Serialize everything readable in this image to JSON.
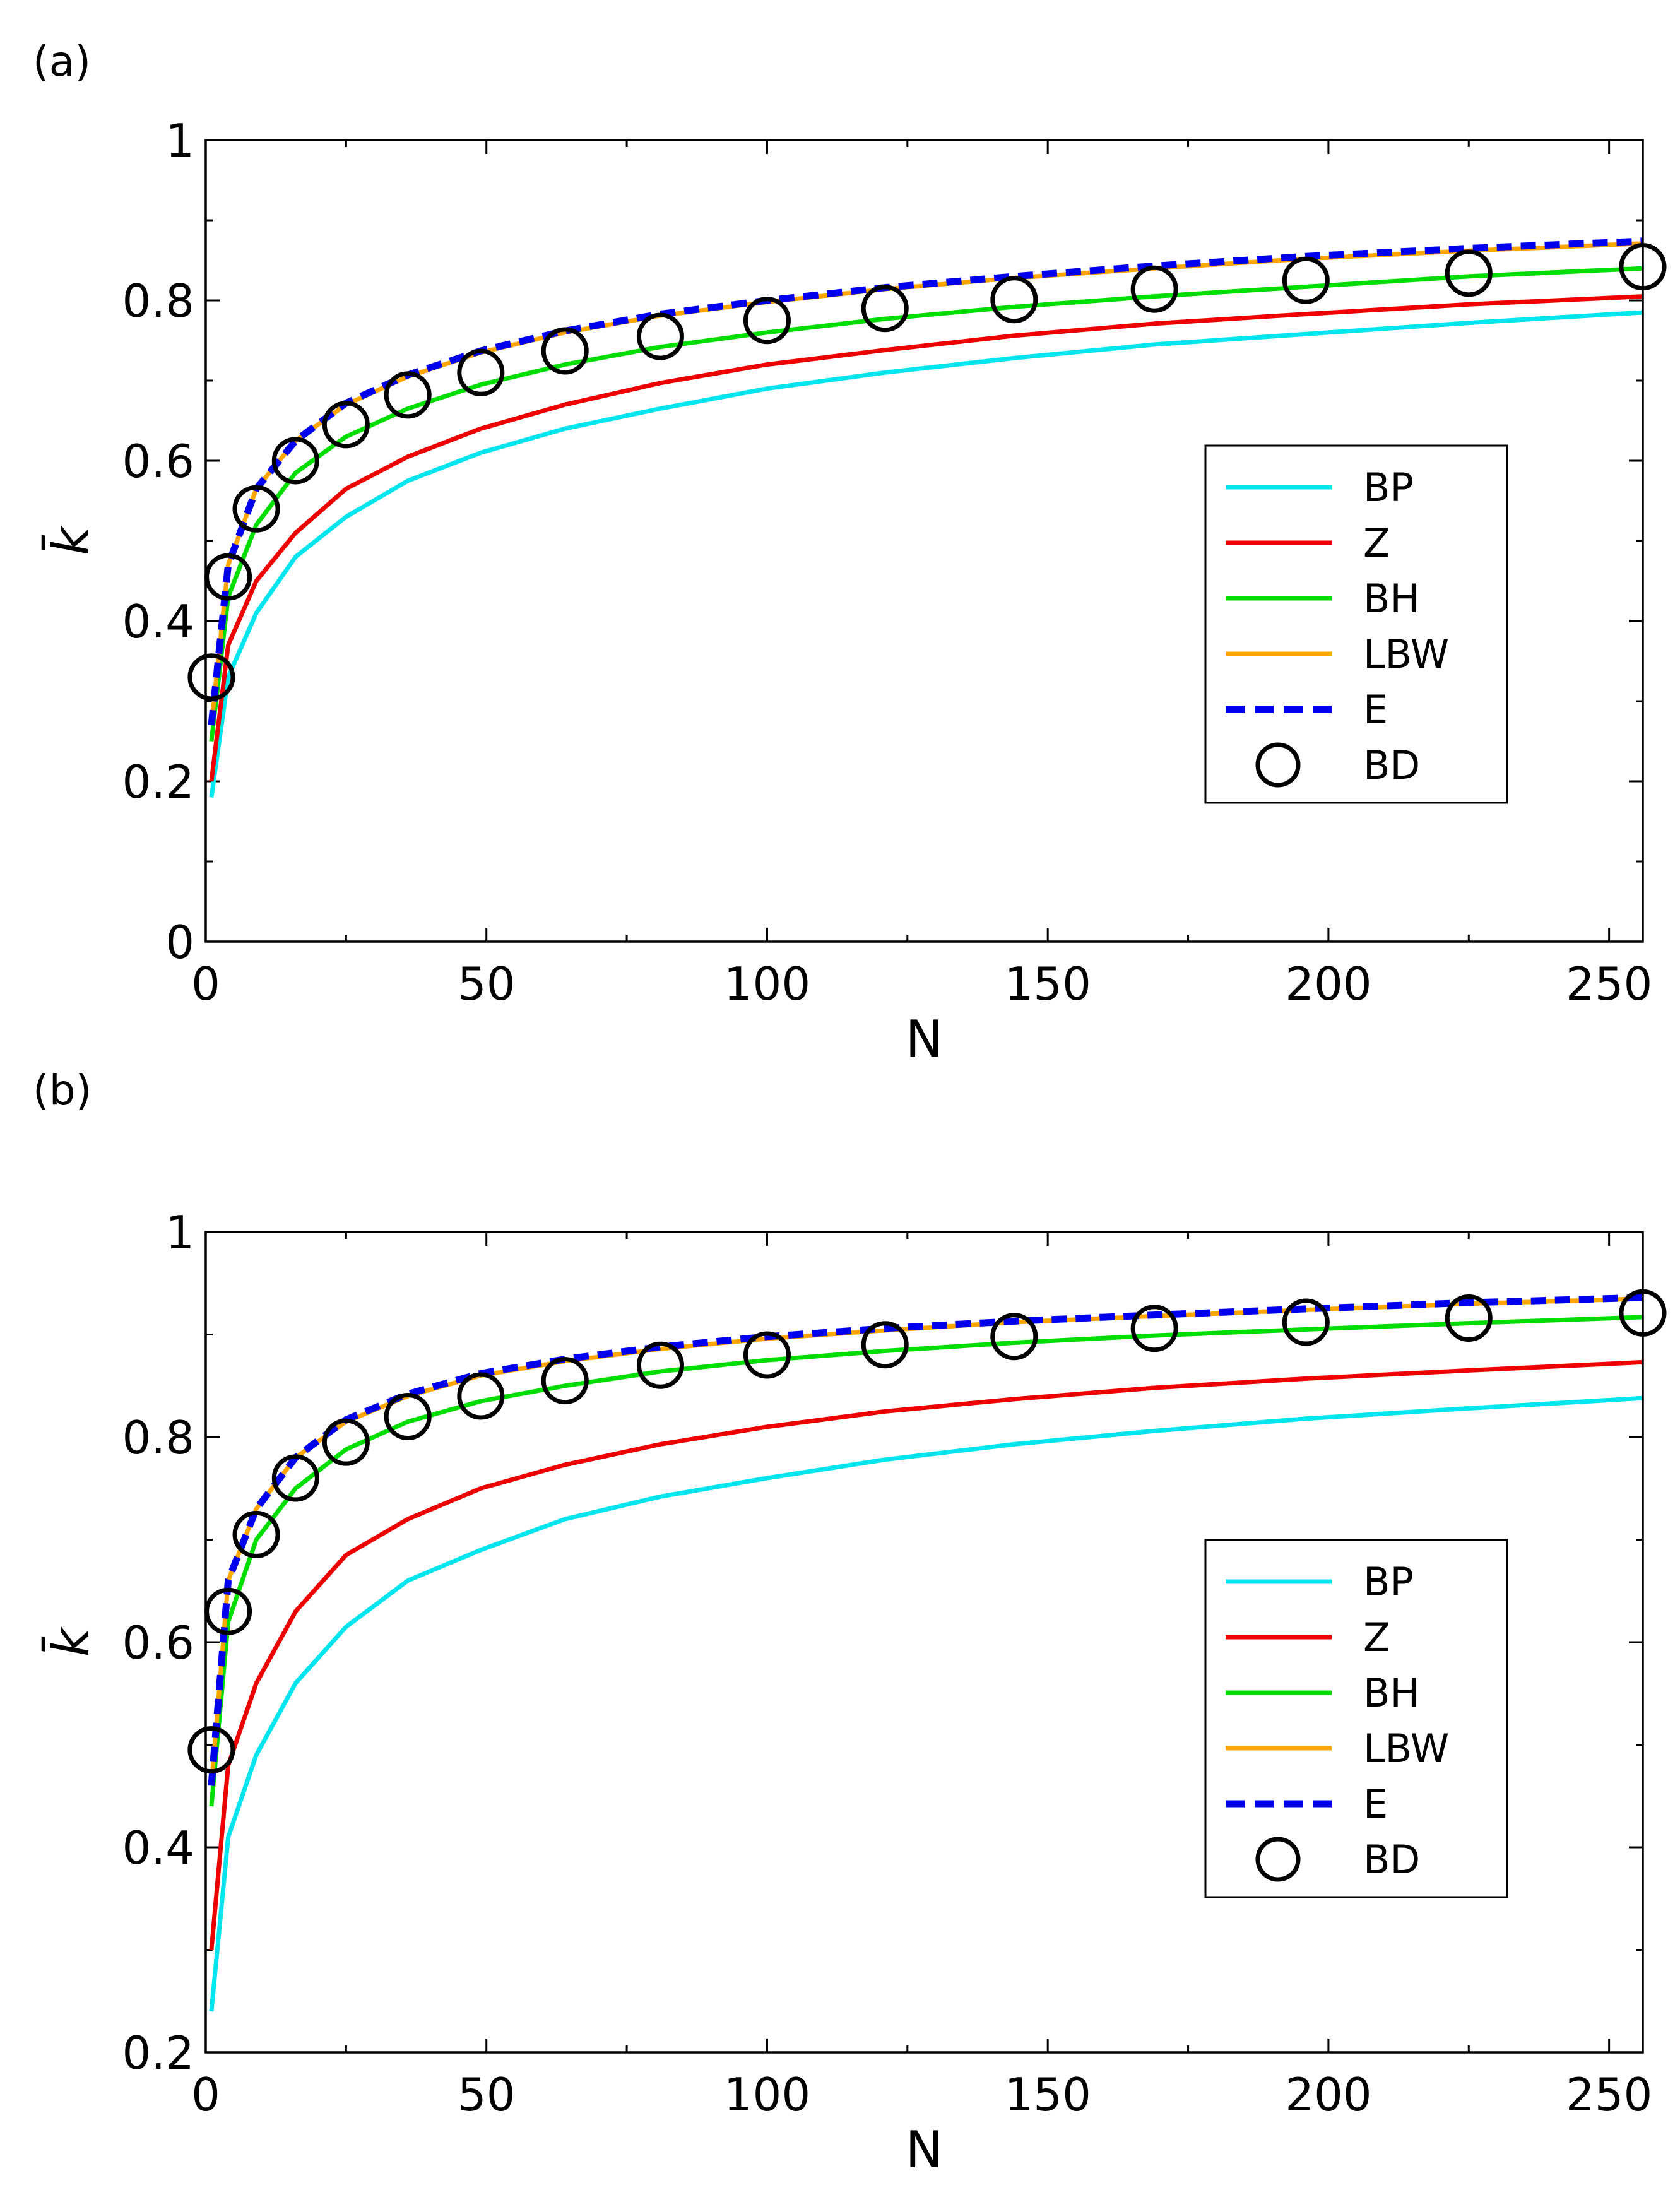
{
  "chart_data": [
    {
      "type": "line",
      "panel_label": "(a)",
      "xlabel": "N",
      "ylabel": "k̄",
      "xlim": [
        0,
        256
      ],
      "ylim": [
        0,
        1
      ],
      "xticks": [
        0,
        50,
        100,
        150,
        200,
        250
      ],
      "yticks": [
        0,
        0.2,
        0.4,
        0.6,
        0.8,
        1
      ],
      "xtick_labels": [
        "0",
        "50",
        "100",
        "150",
        "200",
        "250"
      ],
      "ytick_labels": [
        "0",
        "0.2",
        "0.4",
        "0.6",
        "0.8",
        "1"
      ],
      "x": [
        1,
        4,
        9,
        16,
        25,
        36,
        49,
        64,
        81,
        100,
        121,
        144,
        169,
        196,
        225,
        256
      ],
      "series": [
        {
          "name": "BP",
          "color": "#00e5ee",
          "style": "solid",
          "values": [
            0.18,
            0.33,
            0.41,
            0.48,
            0.53,
            0.575,
            0.61,
            0.64,
            0.665,
            0.69,
            0.71,
            0.728,
            0.745,
            0.758,
            0.772,
            0.785
          ]
        },
        {
          "name": "Z",
          "color": "#ee0000",
          "style": "solid",
          "values": [
            0.2,
            0.37,
            0.45,
            0.51,
            0.565,
            0.605,
            0.64,
            0.67,
            0.697,
            0.72,
            0.738,
            0.756,
            0.771,
            0.783,
            0.795,
            0.805
          ]
        },
        {
          "name": "BH",
          "color": "#00dd00",
          "style": "solid",
          "values": [
            0.25,
            0.43,
            0.52,
            0.585,
            0.63,
            0.665,
            0.695,
            0.72,
            0.742,
            0.76,
            0.777,
            0.792,
            0.805,
            0.817,
            0.83,
            0.84
          ]
        },
        {
          "name": "LBW",
          "color": "#ffa500",
          "style": "solid",
          "values": [
            0.27,
            0.47,
            0.565,
            0.625,
            0.67,
            0.705,
            0.735,
            0.76,
            0.781,
            0.798,
            0.814,
            0.828,
            0.84,
            0.852,
            0.862,
            0.871
          ]
        },
        {
          "name": "E",
          "color": "#0000ee",
          "style": "dashed",
          "values": [
            0.27,
            0.47,
            0.565,
            0.625,
            0.672,
            0.707,
            0.737,
            0.762,
            0.783,
            0.8,
            0.816,
            0.83,
            0.843,
            0.855,
            0.865,
            0.874
          ]
        },
        {
          "name": "BD",
          "color": "#000000",
          "style": "marker",
          "values": [
            0.33,
            0.455,
            0.54,
            0.6,
            0.645,
            0.682,
            0.71,
            0.737,
            0.755,
            0.775,
            0.79,
            0.801,
            0.814,
            0.825,
            0.834,
            0.842
          ]
        }
      ],
      "legend": [
        "BP",
        "Z",
        "BH",
        "LBW",
        "E",
        "BD"
      ],
      "legend_position": "right"
    },
    {
      "type": "line",
      "panel_label": "(b)",
      "xlabel": "N",
      "ylabel": "k̄",
      "xlim": [
        0,
        256
      ],
      "ylim": [
        0.2,
        1
      ],
      "xticks": [
        0,
        50,
        100,
        150,
        200,
        250
      ],
      "yticks": [
        0.2,
        0.4,
        0.6,
        0.8,
        1
      ],
      "xtick_labels": [
        "0",
        "50",
        "100",
        "150",
        "200",
        "250"
      ],
      "ytick_labels": [
        "0.2",
        "0.4",
        "0.6",
        "0.8",
        "1"
      ],
      "x": [
        1,
        4,
        9,
        16,
        25,
        36,
        49,
        64,
        81,
        100,
        121,
        144,
        169,
        196,
        225,
        256
      ],
      "series": [
        {
          "name": "BP",
          "color": "#00e5ee",
          "style": "solid",
          "values": [
            0.24,
            0.41,
            0.49,
            0.56,
            0.615,
            0.66,
            0.69,
            0.72,
            0.742,
            0.76,
            0.778,
            0.793,
            0.806,
            0.818,
            0.828,
            0.838
          ]
        },
        {
          "name": "Z",
          "color": "#ee0000",
          "style": "solid",
          "values": [
            0.3,
            0.48,
            0.56,
            0.63,
            0.685,
            0.72,
            0.75,
            0.773,
            0.793,
            0.81,
            0.825,
            0.837,
            0.848,
            0.857,
            0.865,
            0.873
          ]
        },
        {
          "name": "BH",
          "color": "#00dd00",
          "style": "solid",
          "values": [
            0.44,
            0.62,
            0.7,
            0.75,
            0.788,
            0.815,
            0.835,
            0.85,
            0.864,
            0.875,
            0.884,
            0.892,
            0.899,
            0.905,
            0.911,
            0.917
          ]
        },
        {
          "name": "LBW",
          "color": "#ffa500",
          "style": "solid",
          "values": [
            0.46,
            0.66,
            0.73,
            0.78,
            0.815,
            0.84,
            0.86,
            0.874,
            0.886,
            0.896,
            0.904,
            0.912,
            0.918,
            0.924,
            0.93,
            0.935
          ]
        },
        {
          "name": "E",
          "color": "#0000ee",
          "style": "dashed",
          "values": [
            0.46,
            0.66,
            0.73,
            0.78,
            0.817,
            0.842,
            0.862,
            0.876,
            0.888,
            0.898,
            0.906,
            0.913,
            0.919,
            0.925,
            0.931,
            0.936
          ]
        },
        {
          "name": "BD",
          "color": "#000000",
          "style": "marker",
          "values": [
            0.495,
            0.63,
            0.705,
            0.76,
            0.795,
            0.82,
            0.84,
            0.855,
            0.87,
            0.88,
            0.89,
            0.898,
            0.906,
            0.912,
            0.916,
            0.921
          ]
        }
      ],
      "legend": [
        "BP",
        "Z",
        "BH",
        "LBW",
        "E",
        "BD"
      ],
      "legend_position": "right"
    }
  ]
}
